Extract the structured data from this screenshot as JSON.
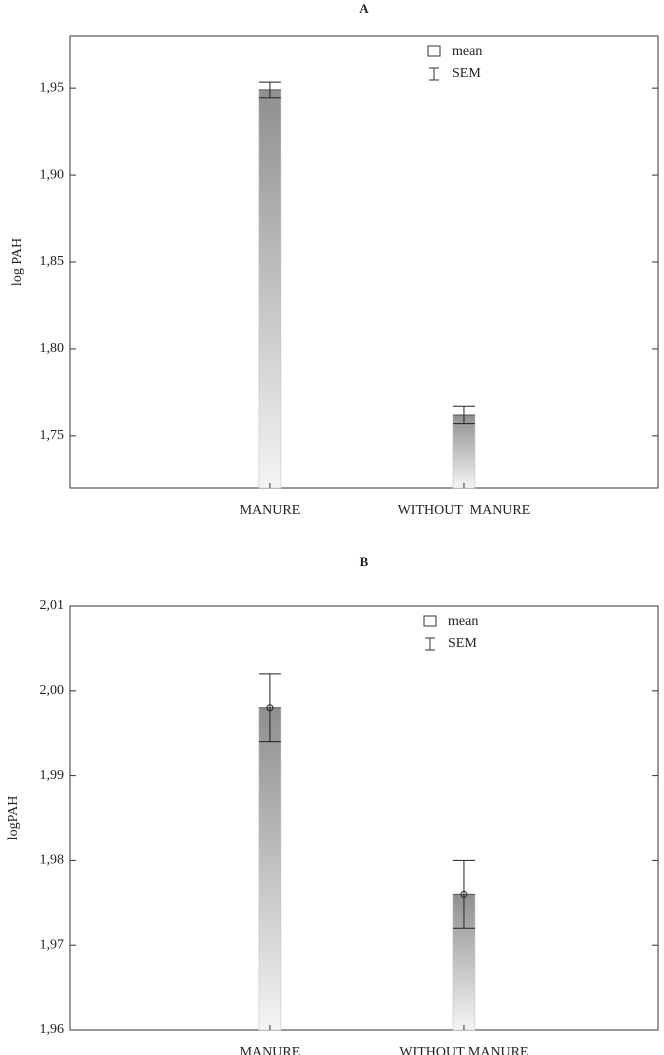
{
  "chart_data": [
    {
      "type": "bar",
      "title": "A",
      "ylabel": "log PAH",
      "categories": [
        "MANURE",
        "WITHOUT  MANURE"
      ],
      "values": [
        1.949,
        1.762
      ],
      "sem": [
        0.0045,
        0.005
      ],
      "ylim": [
        1.72,
        1.98
      ],
      "yticks": [
        1.75,
        1.8,
        1.85,
        1.9,
        1.95
      ],
      "ytick_labels": [
        "1,75",
        "1,80",
        "1,85",
        "1,90",
        "1,95"
      ],
      "legend": {
        "mean": "mean",
        "sem": "SEM",
        "position": "top-right"
      },
      "show_marker": false
    },
    {
      "type": "bar",
      "title": "B",
      "ylabel": "logPAH",
      "categories": [
        "MANURE",
        "WITHOUT MANURE"
      ],
      "values": [
        1.998,
        1.976
      ],
      "sem": [
        0.004,
        0.004
      ],
      "ylim": [
        1.96,
        2.01
      ],
      "yticks": [
        1.96,
        1.97,
        1.98,
        1.99,
        2.0,
        2.01
      ],
      "ytick_labels": [
        "1,96",
        "1,97",
        "1,98",
        "1,99",
        "2,00",
        "2,01"
      ],
      "legend": {
        "mean": "mean",
        "sem": "SEM",
        "position": "top-right"
      },
      "show_marker": true
    }
  ]
}
